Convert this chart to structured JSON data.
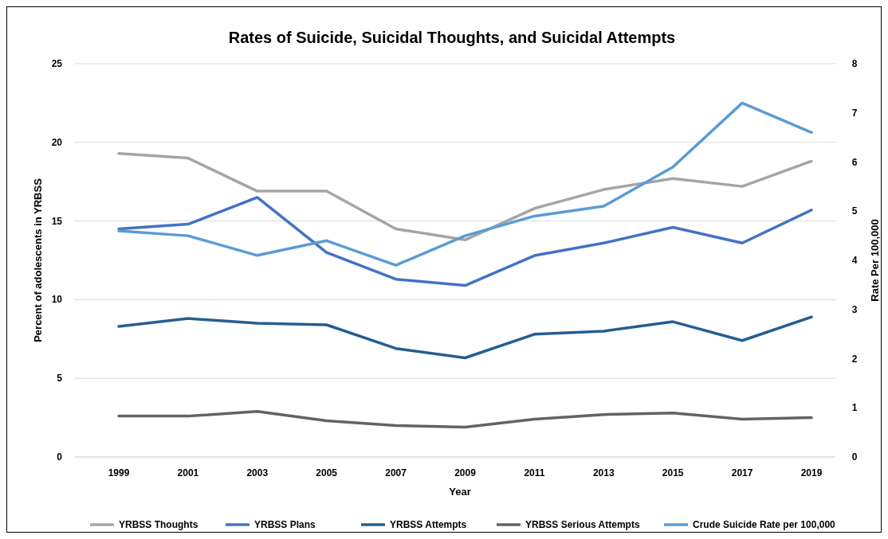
{
  "chart_data": {
    "type": "line",
    "title": "Rates of Suicide, Suicidal Thoughts, and Suicidal Attempts",
    "xlabel": "Year",
    "ylabel": "Percent of adolescents in YRBSS",
    "y2label": "Rate Per 100,000",
    "categories": [
      "1999",
      "2001",
      "2003",
      "2005",
      "2007",
      "2009",
      "2011",
      "2013",
      "2015",
      "2017",
      "2019"
    ],
    "series": [
      {
        "name": "YRBSS Thoughts",
        "color": "#a5a5a5",
        "values": [
          19.3,
          19.0,
          16.9,
          16.9,
          14.5,
          13.8,
          15.8,
          17.0,
          17.7,
          17.2,
          18.8
        ]
      },
      {
        "name": "YRBSS Plans",
        "color": "#4472c4",
        "values": [
          14.5,
          14.8,
          16.5,
          13.0,
          11.3,
          10.9,
          12.8,
          13.6,
          14.6,
          13.6,
          15.7
        ]
      },
      {
        "name": "YRBSS Attempts",
        "color": "#255e91",
        "values": [
          8.3,
          8.8,
          8.5,
          8.4,
          6.9,
          6.3,
          7.8,
          8.0,
          8.6,
          7.4,
          8.9
        ]
      },
      {
        "name": "YRBSS Serious Attempts",
        "color": "#636363",
        "values": [
          2.6,
          2.6,
          2.9,
          2.3,
          2.0,
          1.9,
          2.4,
          2.7,
          2.8,
          2.4,
          2.5
        ]
      },
      {
        "name": "Crude Suicide Rate per 100,000",
        "color": "#5b9bd5",
        "axis": "y2",
        "values": [
          4.6,
          4.5,
          4.1,
          4.4,
          3.9,
          4.5,
          4.9,
          5.1,
          5.9,
          7.2,
          6.6
        ]
      }
    ],
    "ylim": [
      0,
      25
    ],
    "yticks": [
      0,
      5,
      10,
      15,
      20,
      25
    ],
    "y2lim": [
      0,
      8
    ],
    "y2ticks": [
      0,
      1,
      2,
      3,
      4,
      5,
      6,
      7,
      8
    ],
    "grid": "y",
    "legend": "bottom",
    "marker": "none",
    "line_style": "solid"
  }
}
